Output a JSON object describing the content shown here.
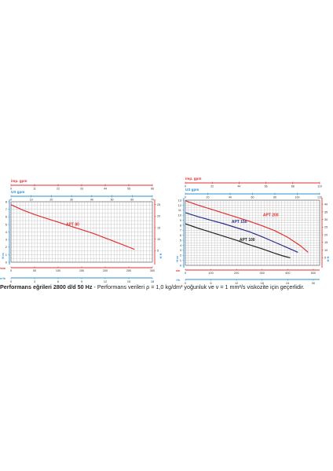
{
  "caption": {
    "bold": "Performans eğrileri 2800 d/d 50 Hz",
    "normal": "  - Performans verileri ρ = 1,0 kg/dm³ yoğunluk ve  v = 1 mm²/s viskozite için geçerlidir."
  },
  "colors": {
    "axis_red": "#e03030",
    "axis_blue": "#2a8fd0",
    "curve_red": "#e03030",
    "curve_navy": "#2c2c8a",
    "curve_black": "#222222",
    "grid": "#bdbdbd"
  },
  "chart_data": [
    {
      "type": "line",
      "top_axis_label_1": "imp. gpm",
      "top_axis_label_2": "US gpm",
      "bottom_axis_label_1": "Qm³/h",
      "bottom_axis_label_2": "Q l/min",
      "left_axis_label": "H m",
      "right_axis_label": "H ft",
      "imp_gpm_ticks": [
        "0",
        "11",
        "22",
        "33",
        "44",
        "55",
        "66"
      ],
      "us_gpm_ticks": [
        "0",
        "10",
        "20",
        "30",
        "40",
        "50",
        "60",
        "70"
      ],
      "m3h_ticks": [
        "0",
        "3",
        "6",
        "9",
        "12",
        "15",
        "18"
      ],
      "lmin_ticks": [
        "0",
        "50",
        "100",
        "150",
        "200",
        "250",
        "300"
      ],
      "ylim": [
        0,
        8
      ],
      "y_ticks": [
        "0",
        "1",
        "2",
        "3",
        "4",
        "5",
        "6",
        "7",
        "8"
      ],
      "ft_ticks": [
        "5",
        "10",
        "15",
        "20",
        "25"
      ],
      "xlim": [
        0,
        300
      ],
      "series": [
        {
          "name": "APT 80",
          "color": "red",
          "x": [
            0,
            25,
            50,
            75,
            100,
            125,
            150,
            175,
            200,
            225,
            250,
            262
          ],
          "y": [
            7.6,
            6.9,
            6.3,
            5.8,
            5.3,
            4.8,
            4.3,
            3.8,
            3.2,
            2.6,
            2.0,
            1.7
          ]
        }
      ]
    },
    {
      "type": "line",
      "top_axis_label_1": "imp. gpm",
      "top_axis_label_2": "US gpm",
      "bottom_axis_label_1": "Qm³/h",
      "bottom_axis_label_2": "Q l/min",
      "left_axis_label": "H m",
      "right_axis_label": "H ft",
      "imp_gpm_ticks": [
        "0",
        "22",
        "44",
        "66",
        "88",
        "110"
      ],
      "us_gpm_ticks": [
        "0",
        "20",
        "40",
        "60",
        "80",
        "100",
        "120"
      ],
      "m3h_ticks": [
        "0",
        "6",
        "12",
        "18",
        "24",
        "30"
      ],
      "lmin_ticks": [
        "0",
        "100",
        "200",
        "300",
        "400",
        "500"
      ],
      "ylim": [
        0,
        13
      ],
      "y_ticks": [
        "0",
        "1",
        "2",
        "3",
        "4",
        "5",
        "6",
        "7",
        "8",
        "9",
        "10",
        "11",
        "12",
        "13"
      ],
      "ft_ticks": [
        "5",
        "10",
        "15",
        "20",
        "25",
        "30",
        "35",
        "40"
      ],
      "xlim": [
        0,
        525
      ],
      "series": [
        {
          "name": "APT 200",
          "color": "red",
          "x": [
            0,
            50,
            100,
            150,
            200,
            250,
            300,
            350,
            400,
            450,
            480
          ],
          "y": [
            12.9,
            12.0,
            11.2,
            10.4,
            9.6,
            8.8,
            7.9,
            6.9,
            5.6,
            3.9,
            2.6
          ]
        },
        {
          "name": "APT 150",
          "color": "navy",
          "x": [
            0,
            50,
            100,
            150,
            200,
            250,
            300,
            350,
            400,
            440
          ],
          "y": [
            10.5,
            9.7,
            9.0,
            8.3,
            7.5,
            6.7,
            5.7,
            4.6,
            3.5,
            2.6
          ]
        },
        {
          "name": "APT 100",
          "color": "black",
          "x": [
            0,
            50,
            100,
            150,
            200,
            250,
            300,
            350,
            380,
            410
          ],
          "y": [
            8.3,
            7.4,
            6.6,
            5.8,
            5.0,
            4.1,
            3.3,
            2.4,
            1.9,
            1.5
          ]
        }
      ]
    }
  ]
}
